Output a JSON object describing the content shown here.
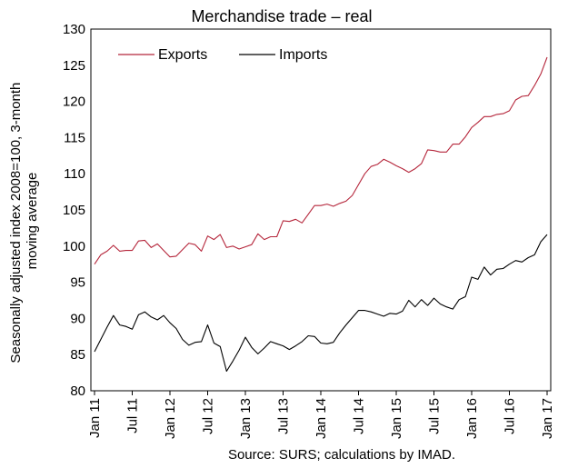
{
  "chart_data": {
    "type": "line",
    "title": "Merchandise trade – real",
    "ylabel_lines": [
      "Seasonally adjusted index 2008=100, 3-month",
      "moving average"
    ],
    "xlabel": "",
    "ylim": [
      80,
      130
    ],
    "yticks": [
      80,
      85,
      90,
      95,
      100,
      105,
      110,
      115,
      120,
      125,
      130
    ],
    "x_categories": [
      "Jan 11",
      "Feb 11",
      "Mar 11",
      "Apr 11",
      "May 11",
      "Jun 11",
      "Jul 11",
      "Aug 11",
      "Sep 11",
      "Oct 11",
      "Nov 11",
      "Dec 11",
      "Jan 12",
      "Feb 12",
      "Mar 12",
      "Apr 12",
      "May 12",
      "Jun 12",
      "Jul 12",
      "Aug 12",
      "Sep 12",
      "Oct 12",
      "Nov 12",
      "Dec 12",
      "Jan 13",
      "Feb 13",
      "Mar 13",
      "Apr 13",
      "May 13",
      "Jun 13",
      "Jul 13",
      "Aug 13",
      "Sep 13",
      "Oct 13",
      "Nov 13",
      "Dec 13",
      "Jan 14",
      "Feb 14",
      "Mar 14",
      "Apr 14",
      "May 14",
      "Jun 14",
      "Jul 14",
      "Aug 14",
      "Sep 14",
      "Oct 14",
      "Nov 14",
      "Dec 14",
      "Jan 15",
      "Feb 15",
      "Mar 15",
      "Apr 15",
      "May 15",
      "Jun 15",
      "Jul 15",
      "Aug 15",
      "Sep 15",
      "Oct 15",
      "Nov 15",
      "Dec 15",
      "Jan 16",
      "Feb 16",
      "Mar 16",
      "Apr 16",
      "May 16",
      "Jun 16",
      "Jul 16",
      "Aug 16",
      "Sep 16",
      "Oct 16",
      "Nov 16",
      "Dec 16",
      "Jan 17"
    ],
    "xtick_labels": [
      "Jan 11",
      "Jul 11",
      "Jan 12",
      "Jul 12",
      "Jan 13",
      "Jul 13",
      "Jan 14",
      "Jul 14",
      "Jan 15",
      "Jul 15",
      "Jan 16",
      "Jul 16",
      "Jan 17"
    ],
    "legend_position": "top-left",
    "grid": false,
    "series": [
      {
        "name": "Exports",
        "color": "#b5263b",
        "values": [
          97.5,
          98.8,
          99.3,
          100.1,
          99.3,
          99.4,
          99.4,
          100.7,
          100.8,
          99.8,
          100.3,
          99.4,
          98.5,
          98.6,
          99.5,
          100.4,
          100.2,
          99.3,
          101.4,
          100.9,
          101.6,
          99.8,
          100.0,
          99.6,
          99.9,
          100.2,
          101.7,
          100.9,
          101.3,
          101.3,
          103.5,
          103.4,
          103.7,
          103.2,
          104.4,
          105.6,
          105.6,
          105.8,
          105.5,
          105.9,
          106.2,
          107.0,
          108.5,
          110.0,
          111.0,
          111.3,
          112.0,
          111.6,
          111.1,
          110.7,
          110.2,
          110.7,
          111.4,
          113.3,
          113.2,
          113.0,
          113.0,
          114.1,
          114.1,
          115.1,
          116.4,
          117.1,
          117.9,
          117.9,
          118.2,
          118.3,
          118.7,
          120.2,
          120.7,
          120.8,
          122.2,
          123.8,
          126.1
        ]
      },
      {
        "name": "Imports",
        "color": "#000000",
        "values": [
          85.4,
          87.1,
          88.8,
          90.4,
          89.1,
          88.9,
          88.5,
          90.5,
          90.9,
          90.2,
          89.8,
          90.4,
          89.4,
          88.6,
          87.1,
          86.3,
          86.7,
          86.8,
          89.1,
          86.6,
          86.1,
          82.7,
          84.1,
          85.6,
          87.4,
          86.0,
          85.1,
          85.9,
          86.8,
          86.5,
          86.2,
          85.7,
          86.2,
          86.8,
          87.6,
          87.5,
          86.6,
          86.5,
          86.7,
          88.0,
          89.1,
          90.1,
          91.1,
          91.1,
          90.9,
          90.6,
          90.3,
          90.7,
          90.6,
          91.0,
          92.5,
          91.6,
          92.6,
          91.8,
          92.8,
          92.0,
          91.6,
          91.3,
          92.6,
          93.0,
          95.7,
          95.4,
          97.1,
          96.0,
          96.8,
          96.9,
          97.5,
          98.0,
          97.8,
          98.4,
          98.8,
          100.6,
          101.6
        ]
      }
    ],
    "source": "Source: SURS; calculations by IMAD."
  }
}
